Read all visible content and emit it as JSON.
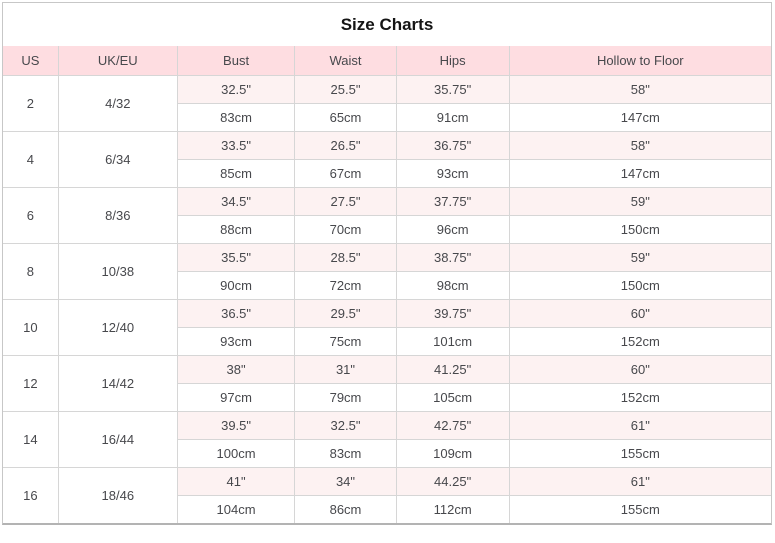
{
  "chart_data": {
    "type": "table",
    "title": "Size Charts",
    "columns": [
      "US",
      "UK/EU",
      "Bust",
      "Waist",
      "Hips",
      "Hollow to Floor"
    ],
    "rows": [
      {
        "us": "2",
        "uk_eu": "4/32",
        "inches": {
          "bust": "32.5\"",
          "waist": "25.5\"",
          "hips": "35.75\"",
          "hollow_to_floor": "58\""
        },
        "cm": {
          "bust": "83cm",
          "waist": "65cm",
          "hips": "91cm",
          "hollow_to_floor": "147cm"
        }
      },
      {
        "us": "4",
        "uk_eu": "6/34",
        "inches": {
          "bust": "33.5\"",
          "waist": "26.5\"",
          "hips": "36.75\"",
          "hollow_to_floor": "58\""
        },
        "cm": {
          "bust": "85cm",
          "waist": "67cm",
          "hips": "93cm",
          "hollow_to_floor": "147cm"
        }
      },
      {
        "us": "6",
        "uk_eu": "8/36",
        "inches": {
          "bust": "34.5\"",
          "waist": "27.5\"",
          "hips": "37.75\"",
          "hollow_to_floor": "59\""
        },
        "cm": {
          "bust": "88cm",
          "waist": "70cm",
          "hips": "96cm",
          "hollow_to_floor": "150cm"
        }
      },
      {
        "us": "8",
        "uk_eu": "10/38",
        "inches": {
          "bust": "35.5\"",
          "waist": "28.5\"",
          "hips": "38.75\"",
          "hollow_to_floor": "59\""
        },
        "cm": {
          "bust": "90cm",
          "waist": "72cm",
          "hips": "98cm",
          "hollow_to_floor": "150cm"
        }
      },
      {
        "us": "10",
        "uk_eu": "12/40",
        "inches": {
          "bust": "36.5\"",
          "waist": "29.5\"",
          "hips": "39.75\"",
          "hollow_to_floor": "60\""
        },
        "cm": {
          "bust": "93cm",
          "waist": "75cm",
          "hips": "101cm",
          "hollow_to_floor": "152cm"
        }
      },
      {
        "us": "12",
        "uk_eu": "14/42",
        "inches": {
          "bust": "38\"",
          "waist": "31\"",
          "hips": "41.25\"",
          "hollow_to_floor": "60\""
        },
        "cm": {
          "bust": "97cm",
          "waist": "79cm",
          "hips": "105cm",
          "hollow_to_floor": "152cm"
        }
      },
      {
        "us": "14",
        "uk_eu": "16/44",
        "inches": {
          "bust": "39.5\"",
          "waist": "32.5\"",
          "hips": "42.75\"",
          "hollow_to_floor": "61\""
        },
        "cm": {
          "bust": "100cm",
          "waist": "83cm",
          "hips": "109cm",
          "hollow_to_floor": "155cm"
        }
      },
      {
        "us": "16",
        "uk_eu": "18/46",
        "inches": {
          "bust": "41\"",
          "waist": "34\"",
          "hips": "44.25\"",
          "hollow_to_floor": "61\""
        },
        "cm": {
          "bust": "104cm",
          "waist": "86cm",
          "hips": "112cm",
          "hollow_to_floor": "155cm"
        }
      }
    ]
  },
  "colors": {
    "header_bg": "#fedde1",
    "inch_row_bg": "#fdf2f2",
    "cm_row_bg": "#ffffff",
    "border": "#d6d6d6",
    "outer_border": "#c7c7c7",
    "bottom_border": "#b3b3b3",
    "text": "#47484c",
    "title_text": "#141414"
  }
}
